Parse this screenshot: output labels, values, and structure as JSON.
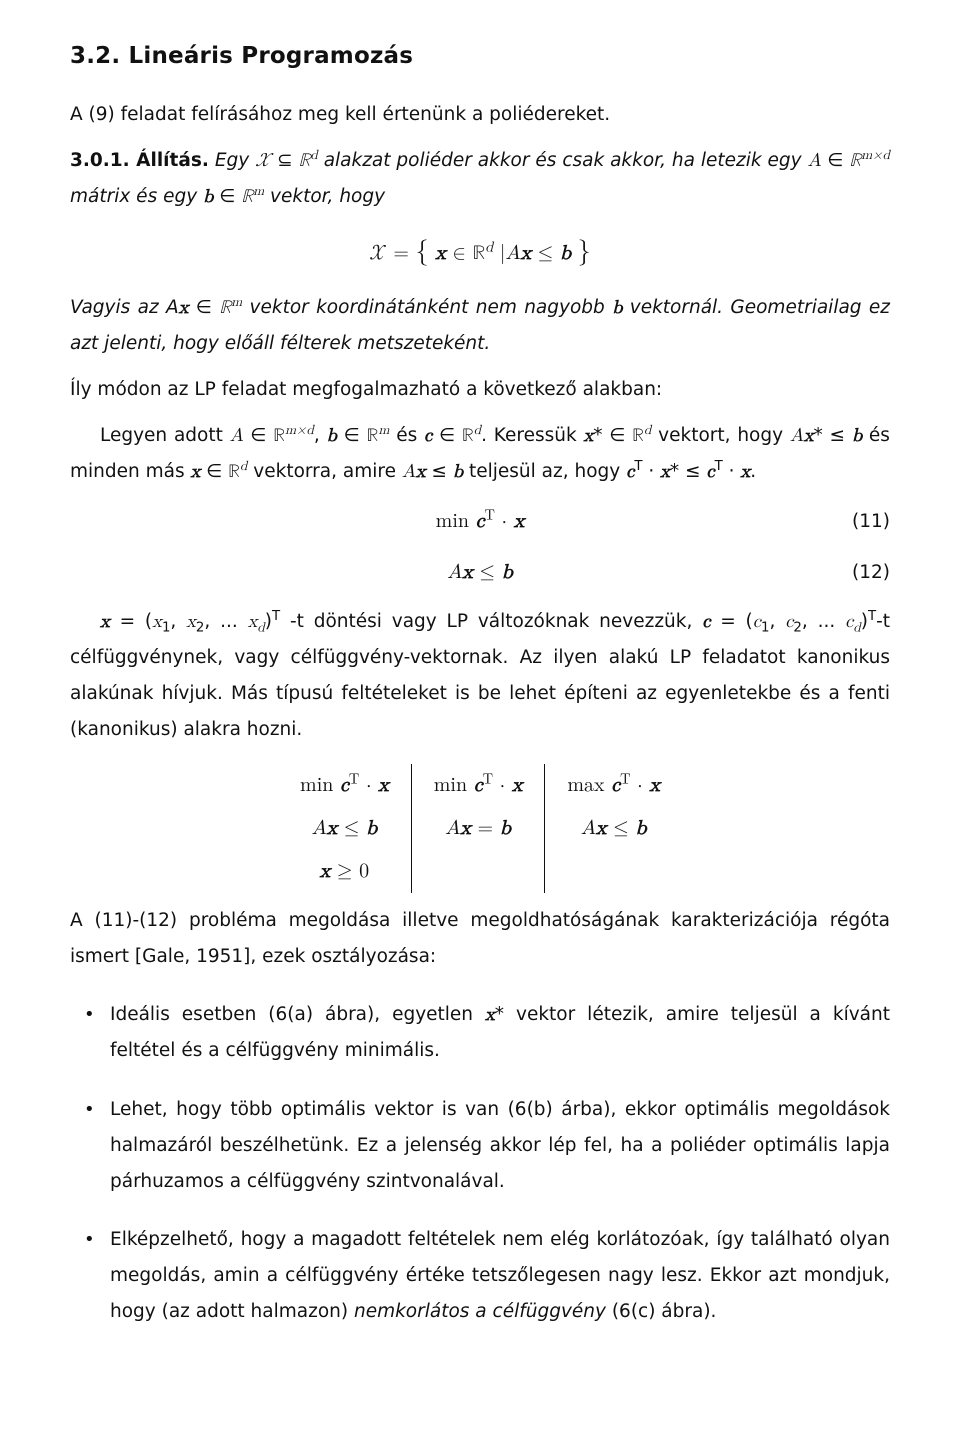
{
  "section": {
    "number": "3.2.",
    "title": "Lineáris Programozás"
  },
  "p1": "A (9) feladat felírásához meg kell értenünk a poliédereket.",
  "thm": {
    "label": "3.0.1. Állítás.",
    "text_before": "Egy ",
    "cond": " alakzat poliéder akkor és csak akkor, ha letezik egy ",
    "cond2": " mátrix és egy ",
    "cond3": " vektor, hogy"
  },
  "disp1": "𝒳 = { x ∈ ℝᵈ | A x ≤ b }",
  "vagyis_a": "Vagyis az A",
  "vagyis_b": " vektor koordinátánként nem nagyobb ",
  "vagyis_c": " vektornál. Geometriailag ez azt jelenti, hogy előáll félterek metszeteként.",
  "p3a": "Íly módon az LP feladat megfogalmazható a következő alakban:",
  "legyen_a": "Legyen adott ",
  "legyen_b": " és ",
  "legyen_c": ". Keressük ",
  "legyen_d": " vektort, hogy ",
  "legyen_e": " és minden más ",
  "legyen_f": " vektorra, amire ",
  "legyen_g": " teljesül az, hogy ",
  "eq11": {
    "txt": "min cᵀ · x",
    "num": "(11)"
  },
  "eq12": {
    "txt": "A x ≤ b",
    "num": "(12)"
  },
  "p4a": " -t döntési vagy LP változóknak nevezzük, ",
  "p4b": "-t célfüggvénynek, vagy célfüggvény-vektornak. Az ilyen alakú LP feladatot kanonikus alakúnak hívjuk. Más típusú feltételeket is be lehet építeni az egyenletekbe és a fenti (kanonikus) alakra hozni.",
  "tbl": {
    "r1": [
      "min cᵀ · x",
      "min cᵀ · x",
      "max cᵀ · x"
    ],
    "r2": [
      "A x ≤ b",
      "A x = b",
      "A x ≤ b"
    ],
    "r3": [
      "x ≥ 0",
      "",
      ""
    ]
  },
  "p5": "A (11)-(12) probléma megoldása illetve megoldhatóságának karakterizációja régóta ismert [Gale, 1951], ezek osztályozása:",
  "bul1a": "Ideális esetben (6(a) ábra), egyetlen ",
  "bul1b": " vektor létezik, amire teljesül a kívánt feltétel és a célfüggvény minimális.",
  "bul2": "Lehet, hogy több optimális vektor is van (6(b) árba), ekkor optimális megoldások halmazáról beszélhetünk. Ez a jelenség akkor lép fel, ha a poliéder optimális lapja párhuzamos a célfüggvény szintvonalával.",
  "bul3a": "Elképzelhető, hogy a magadott feltételek nem elég korlátozóak, így található olyan megoldás, amin a célfüggvény értéke tetszőlegesen nagy lesz. Ekkor azt mondjuk, hogy (az adott halmazon) ",
  "bul3b": "nemkorlátos a célfüggvény",
  "bul3c": " (6(c) ábra)."
}
